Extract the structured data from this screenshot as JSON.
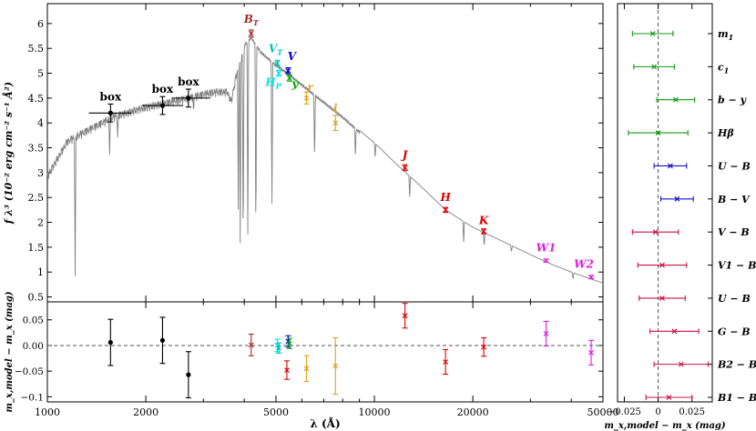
{
  "chart_data": [
    {
      "type": "line",
      "panel": "sed",
      "ylabel": "f λ³ (10⁻² erg cm⁻² s⁻¹ Å²)",
      "xscale": "log",
      "xlim": [
        1000,
        50000
      ],
      "ylim": [
        0.4,
        6.4
      ],
      "x_ticks": [
        1000,
        2000,
        5000,
        10000,
        20000,
        50000
      ],
      "y_ticks": [
        0.5,
        1,
        1.5,
        2,
        2.5,
        3,
        3.5,
        4,
        4.5,
        5,
        5.5,
        6
      ],
      "model_spectrum": {
        "color": "#808080",
        "continuum": [
          [
            1000,
            3.0
          ],
          [
            1150,
            3.7
          ],
          [
            1350,
            3.95
          ],
          [
            1600,
            4.2
          ],
          [
            1900,
            4.35
          ],
          [
            2200,
            4.45
          ],
          [
            2600,
            4.55
          ],
          [
            3000,
            4.65
          ],
          [
            3300,
            4.7
          ],
          [
            3550,
            4.7
          ],
          [
            3650,
            4.5
          ],
          [
            3800,
            5.1
          ],
          [
            4000,
            5.6
          ],
          [
            4200,
            5.75
          ],
          [
            4500,
            5.45
          ],
          [
            5000,
            5.2
          ],
          [
            5500,
            5.0
          ],
          [
            6000,
            4.8
          ],
          [
            7000,
            4.45
          ],
          [
            8000,
            4.15
          ],
          [
            9000,
            3.85
          ],
          [
            10000,
            3.6
          ],
          [
            12000,
            3.1
          ],
          [
            14000,
            2.7
          ],
          [
            16500,
            2.25
          ],
          [
            20000,
            1.9
          ],
          [
            25000,
            1.6
          ],
          [
            30000,
            1.35
          ],
          [
            35000,
            1.15
          ],
          [
            40000,
            1.0
          ],
          [
            45000,
            0.88
          ],
          [
            50000,
            0.78
          ]
        ],
        "absorption_lines": [
          [
            1216,
            0.9
          ],
          [
            1550,
            3.3
          ],
          [
            1640,
            3.7
          ],
          [
            2800,
            4.2
          ],
          [
            3835,
            2.2
          ],
          [
            3889,
            1.5
          ],
          [
            3970,
            1.2
          ],
          [
            4102,
            1.5
          ],
          [
            4341,
            1.4
          ],
          [
            4861,
            2.2
          ],
          [
            6563,
            3.2
          ],
          [
            8750,
            3.3
          ],
          [
            10050,
            3.3
          ],
          [
            12820,
            2.5
          ],
          [
            18750,
            1.6
          ],
          [
            21660,
            1.5
          ],
          [
            26250,
            1.4
          ],
          [
            40500,
            0.85
          ]
        ]
      },
      "photometry": [
        {
          "label": "box",
          "x": 1560,
          "y": 4.2,
          "x_err": [
            1340,
            1810
          ],
          "y_err": 0.18,
          "color": "#000000",
          "marker": "filled-circle"
        },
        {
          "label": "box",
          "x": 2250,
          "y": 4.35,
          "x_err": [
            1950,
            2600
          ],
          "y_err": 0.18,
          "color": "#000000",
          "marker": "filled-circle"
        },
        {
          "label": "box",
          "x": 2700,
          "y": 4.5,
          "x_err": [
            2400,
            3150
          ],
          "y_err": 0.18,
          "color": "#000000",
          "marker": "filled-circle"
        },
        {
          "label": "B",
          "subscript": "T",
          "x": 4200,
          "y": 5.8,
          "y_err": 0.07,
          "color": "#a52a2a",
          "marker": "x"
        },
        {
          "label": "V",
          "subscript": "T",
          "x": 5050,
          "y": 5.2,
          "y_err": 0.06,
          "color": "#00bfbf",
          "marker": "x"
        },
        {
          "label": "V",
          "x": 5450,
          "y": 5.05,
          "y_err": 0.06,
          "color": "#0000cc",
          "marker": "x"
        },
        {
          "label": "H",
          "subscript": "P",
          "x": 5100,
          "y": 5.0,
          "y_err": 0.06,
          "color": "#00e5e5",
          "marker": "x"
        },
        {
          "label": "y",
          "x": 5500,
          "y": 4.9,
          "y_err": 0.06,
          "color": "#00aa00",
          "marker": "x"
        },
        {
          "label": "r",
          "x": 6200,
          "y": 4.5,
          "y_err": 0.12,
          "color": "#e0a020",
          "marker": "x"
        },
        {
          "label": "i",
          "x": 7600,
          "y": 4.0,
          "y_err": 0.15,
          "color": "#e0a020",
          "marker": "x"
        },
        {
          "label": "J",
          "x": 12400,
          "y": 3.1,
          "y_err": 0.06,
          "color": "#dd0000",
          "marker": "x"
        },
        {
          "label": "H",
          "x": 16500,
          "y": 2.25,
          "y_err": 0.05,
          "color": "#dd0000",
          "marker": "x"
        },
        {
          "label": "K",
          "x": 21600,
          "y": 1.82,
          "y_err": 0.05,
          "color": "#dd0000",
          "marker": "x"
        },
        {
          "label": "W1",
          "x": 33500,
          "y": 1.23,
          "y_err": 0.03,
          "color": "#e020e0",
          "marker": "x"
        },
        {
          "label": "W2",
          "x": 46000,
          "y": 0.9,
          "y_err": 0.03,
          "color": "#e020e0",
          "marker": "x"
        }
      ]
    },
    {
      "type": "scatter",
      "panel": "residuals",
      "xlabel": "λ (Å)",
      "ylabel": "m_x,model − m_x (mag)",
      "xscale": "log",
      "xlim": [
        1000,
        50000
      ],
      "ylim": [
        -0.11,
        0.085
      ],
      "x_ticks": [
        1000,
        2000,
        5000,
        10000,
        20000,
        50000
      ],
      "x_tick_labels": [
        "1000",
        "2000",
        "5000",
        "10000",
        "20000",
        "50000"
      ],
      "y_ticks": [
        0.05,
        0,
        -0.05,
        -0.1
      ],
      "y_tick_labels": [
        "0.05",
        "0.00",
        "−0.05",
        "−0.1"
      ],
      "zero_line": "dashed",
      "points": [
        {
          "x": 1560,
          "y": 0.006,
          "y_err": 0.045,
          "color": "#000000",
          "marker": "filled-circle"
        },
        {
          "x": 2250,
          "y": 0.01,
          "y_err": 0.045,
          "color": "#000000",
          "marker": "filled-circle"
        },
        {
          "x": 2700,
          "y": -0.057,
          "y_err": 0.045,
          "color": "#000000",
          "marker": "filled-circle"
        },
        {
          "x": 4200,
          "y": 0.001,
          "y_err": 0.021,
          "color": "#a52a2a",
          "marker": "x"
        },
        {
          "x": 5050,
          "y": 0.0,
          "y_err": 0.012,
          "color": "#00e5e5",
          "marker": "x"
        },
        {
          "x": 5100,
          "y": -0.005,
          "y_err": 0.01,
          "color": "#00bfbf",
          "marker": "x"
        },
        {
          "x": 5450,
          "y": 0.008,
          "y_err": 0.011,
          "color": "#0000cc",
          "marker": "x"
        },
        {
          "x": 5500,
          "y": 0.004,
          "y_err": 0.01,
          "color": "#00aa00",
          "marker": "x"
        },
        {
          "x": 5400,
          "y": -0.048,
          "y_err": 0.018,
          "color": "#dd0000",
          "marker": "x"
        },
        {
          "x": 6200,
          "y": -0.045,
          "y_err": 0.025,
          "color": "#e0a020",
          "marker": "x"
        },
        {
          "x": 7600,
          "y": -0.04,
          "y_err": 0.055,
          "color": "#e0a020",
          "marker": "x"
        },
        {
          "x": 12400,
          "y": 0.058,
          "y_err": 0.024,
          "color": "#dd0000",
          "marker": "x"
        },
        {
          "x": 16500,
          "y": -0.032,
          "y_err": 0.024,
          "color": "#dd0000",
          "marker": "x"
        },
        {
          "x": 21600,
          "y": -0.003,
          "y_err": 0.018,
          "color": "#dd0000",
          "marker": "x"
        },
        {
          "x": 33500,
          "y": 0.023,
          "y_err": 0.024,
          "color": "#e020e0",
          "marker": "x"
        },
        {
          "x": 46000,
          "y": -0.014,
          "y_err": 0.024,
          "color": "#e020e0",
          "marker": "x"
        }
      ]
    },
    {
      "type": "scatter",
      "panel": "color-index-residuals",
      "xlabel": "m_x,model − m_x (mag)",
      "xlim": [
        -0.03,
        0.04
      ],
      "x_ticks": [
        -0.025,
        0,
        0.025
      ],
      "x_tick_labels": [
        "−0.025",
        "0",
        "0.025"
      ],
      "zero_line": "dashed",
      "categories": [
        "m1",
        "c1",
        "b − y",
        "Hβ",
        "U − B",
        "B − V",
        "V − B",
        "V1 − B",
        "U − B",
        "G − B",
        "B2 − B",
        "B1 − B"
      ],
      "category_labels": [
        {
          "main": "m",
          "sub": "1"
        },
        {
          "main": "c",
          "sub": "1"
        },
        {
          "main": "b − y"
        },
        {
          "main": "Hβ"
        },
        {
          "main": "U − B"
        },
        {
          "main": "B − V"
        },
        {
          "main": "V − B"
        },
        {
          "main": "V1 − B"
        },
        {
          "main": "U − B"
        },
        {
          "main": "G − B"
        },
        {
          "main": "B2 − B"
        },
        {
          "main": "B1 − B"
        }
      ],
      "values": [
        -0.004,
        -0.003,
        0.013,
        0.0,
        0.009,
        0.014,
        -0.002,
        0.003,
        0.003,
        0.012,
        0.017,
        0.008
      ],
      "errors": [
        0.015,
        0.015,
        0.014,
        0.022,
        0.012,
        0.012,
        0.017,
        0.018,
        0.017,
        0.018,
        0.02,
        0.017
      ],
      "colors": [
        "#119911",
        "#119911",
        "#119911",
        "#119911",
        "#1111cc",
        "#1111cc",
        "#cc1144",
        "#cc1144",
        "#cc1144",
        "#cc1144",
        "#cc1144",
        "#cc1144"
      ]
    }
  ]
}
